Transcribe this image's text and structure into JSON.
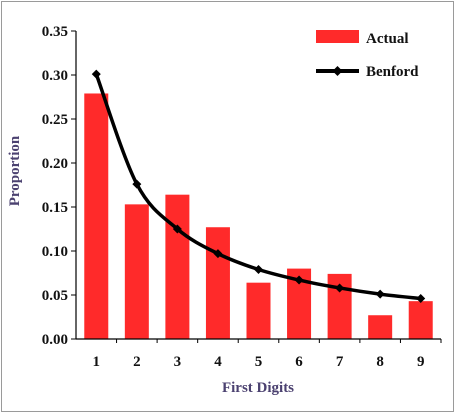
{
  "chart_data": {
    "type": "bar+line",
    "title": "",
    "xlabel": "First Digits",
    "ylabel": "Proportion",
    "categories": [
      "1",
      "2",
      "3",
      "4",
      "5",
      "6",
      "7",
      "8",
      "9"
    ],
    "ylim": [
      0,
      0.35
    ],
    "yticks": [
      "0.00",
      "0.05",
      "0.10",
      "0.15",
      "0.20",
      "0.25",
      "0.30",
      "0.35"
    ],
    "grid": false,
    "legend_position": "top-right",
    "series": [
      {
        "name": "Actual",
        "kind": "bar",
        "color": "#ff2a2a",
        "values": [
          0.279,
          0.153,
          0.164,
          0.127,
          0.064,
          0.08,
          0.074,
          0.027,
          0.043
        ]
      },
      {
        "name": "Benford",
        "kind": "line",
        "color": "#000000",
        "values": [
          0.301,
          0.176,
          0.125,
          0.097,
          0.079,
          0.067,
          0.058,
          0.051,
          0.046
        ]
      }
    ]
  }
}
